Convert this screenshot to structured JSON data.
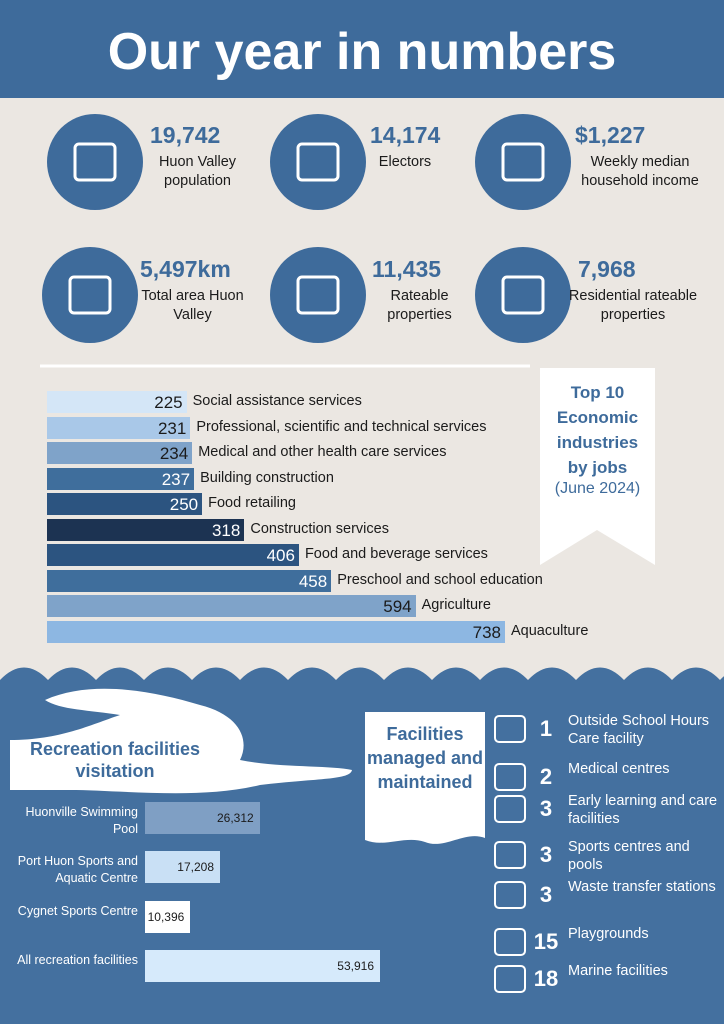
{
  "title": "Our year in numbers",
  "stats": [
    {
      "value": "19,742",
      "label": "Huon Valley population"
    },
    {
      "value": "14,174",
      "label": "Electors"
    },
    {
      "value": "$1,227",
      "label": "Weekly median household income"
    },
    {
      "value": "5,497km",
      "label": "Total area Huon Valley"
    },
    {
      "value": "11,435",
      "label": "Rateable properties"
    },
    {
      "value": "7,968",
      "label": "Residential rateable properties"
    }
  ],
  "industries": {
    "title": "Top 10 Economic industries by jobs",
    "subtitle": "(June 2024)",
    "categories": [
      "Social assistance services",
      "Professional, scientific and technical services",
      "Medical and other health care services",
      "Building construction",
      "Food retailing",
      "Construction services",
      "Food and beverage services",
      "Preschool and school education",
      "Agriculture",
      "Aquaculture"
    ],
    "values": [
      225,
      231,
      234,
      237,
      250,
      318,
      406,
      458,
      594,
      738
    ],
    "colors": [
      "#d4e6f7",
      "#a9c8e8",
      "#7fa3c9",
      "#3f6e9c",
      "#2c5480",
      "#1c3352",
      "#2c5480",
      "#3f6e9c",
      "#7fa3c9",
      "#8db7e2"
    ]
  },
  "recreation": {
    "title": "Recreation facilities visitation",
    "categories": [
      "Huonville Swimming Pool",
      "Port Huon Sports and Aquatic Centre",
      "Cygnet Sports Centre",
      "All recreation facilities"
    ],
    "values": [
      26312,
      17208,
      10396,
      53916
    ],
    "value_labels": [
      "26,312",
      "17,208",
      "10,396",
      "53,916"
    ],
    "colors": [
      "#7f9fc4",
      "#c9e0f5",
      "#ffffff",
      "#d6eafb"
    ]
  },
  "facilities": {
    "title": "Facilities managed and maintained",
    "items": [
      {
        "count": 1,
        "label": "Outside School Hours Care facility"
      },
      {
        "count": 2,
        "label": "Medical centres"
      },
      {
        "count": 3,
        "label": "Early learning and care facilities"
      },
      {
        "count": 3,
        "label": "Sports centres and pools"
      },
      {
        "count": 3,
        "label": "Waste transfer stations"
      },
      {
        "count": 15,
        "label": "Playgrounds"
      },
      {
        "count": 18,
        "label": "Marine facilities"
      }
    ]
  }
}
